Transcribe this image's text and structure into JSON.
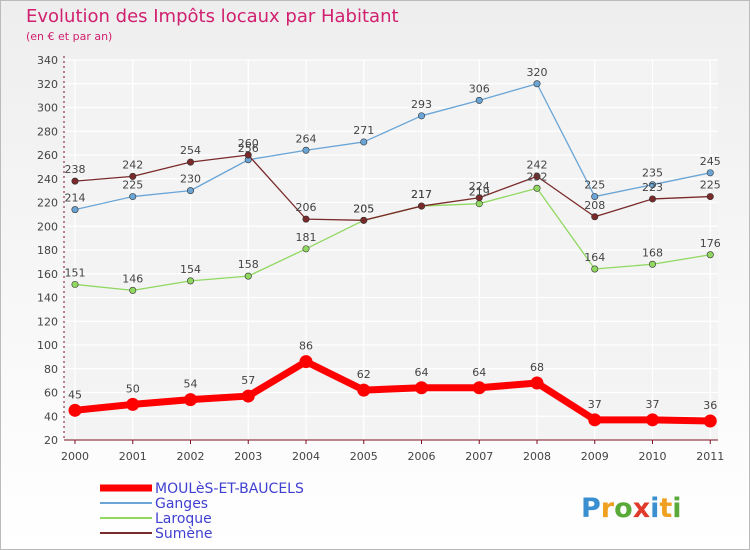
{
  "title": "Evolution des Impôts locaux par Habitant",
  "subtitle": "(en € et par an)",
  "logo_text": "Proxiti",
  "colors": {
    "title": "#d0206f",
    "axis": "#7a1020",
    "plot_bg_top": "#f0f0f0",
    "plot_bg_bottom": "#ffffff",
    "grid": "#ffffff",
    "tick_text": "#444444",
    "label_text": "#444444"
  },
  "chart_data": {
    "type": "line",
    "x": [
      "2000",
      "2001",
      "2002",
      "2003",
      "2004",
      "2005",
      "2006",
      "2007",
      "2008",
      "2009",
      "2010",
      "2011"
    ],
    "ylim": [
      20,
      340
    ],
    "yticks": [
      20,
      40,
      60,
      80,
      100,
      120,
      140,
      160,
      180,
      200,
      220,
      240,
      260,
      280,
      300,
      320,
      340
    ],
    "grid": true,
    "legend_position": "bottom-left",
    "series": [
      {
        "name": "MOULèS-ET-BAUCELS",
        "color": "#ff0000",
        "values": [
          45,
          50,
          54,
          57,
          86,
          62,
          64,
          64,
          68,
          37,
          37,
          36
        ]
      },
      {
        "name": "Ganges",
        "color": "#6aa5d6",
        "values": [
          214,
          225,
          230,
          256,
          264,
          271,
          293,
          306,
          320,
          225,
          235,
          245
        ]
      },
      {
        "name": "Laroque",
        "color": "#90d860",
        "values": [
          151,
          146,
          154,
          158,
          181,
          205,
          217,
          219,
          232,
          164,
          168,
          176
        ]
      },
      {
        "name": "Sumène",
        "color": "#7a2a2a",
        "values": [
          238,
          242,
          254,
          260,
          206,
          205,
          217,
          224,
          242,
          208,
          223,
          225
        ]
      }
    ],
    "data_labels": [
      {
        "series": 0,
        "values": [
          "45",
          "50",
          "54",
          "57",
          "86",
          "62",
          "64",
          "64",
          "68",
          "37",
          "37",
          "36"
        ]
      },
      {
        "series": 1,
        "values": [
          "214",
          "225",
          "230",
          "256",
          "264",
          "271",
          "293",
          "306",
          "320",
          "225",
          "235",
          "245"
        ]
      },
      {
        "series": 2,
        "values": [
          "151",
          "146",
          "154",
          "158",
          "181",
          "205",
          "217",
          "219",
          "232",
          "164",
          "168",
          "176"
        ]
      },
      {
        "series": 3,
        "values": [
          "238",
          "242",
          "254",
          "260",
          "206",
          "205",
          "217",
          "224",
          "242",
          "208",
          "223",
          "225"
        ]
      }
    ]
  }
}
